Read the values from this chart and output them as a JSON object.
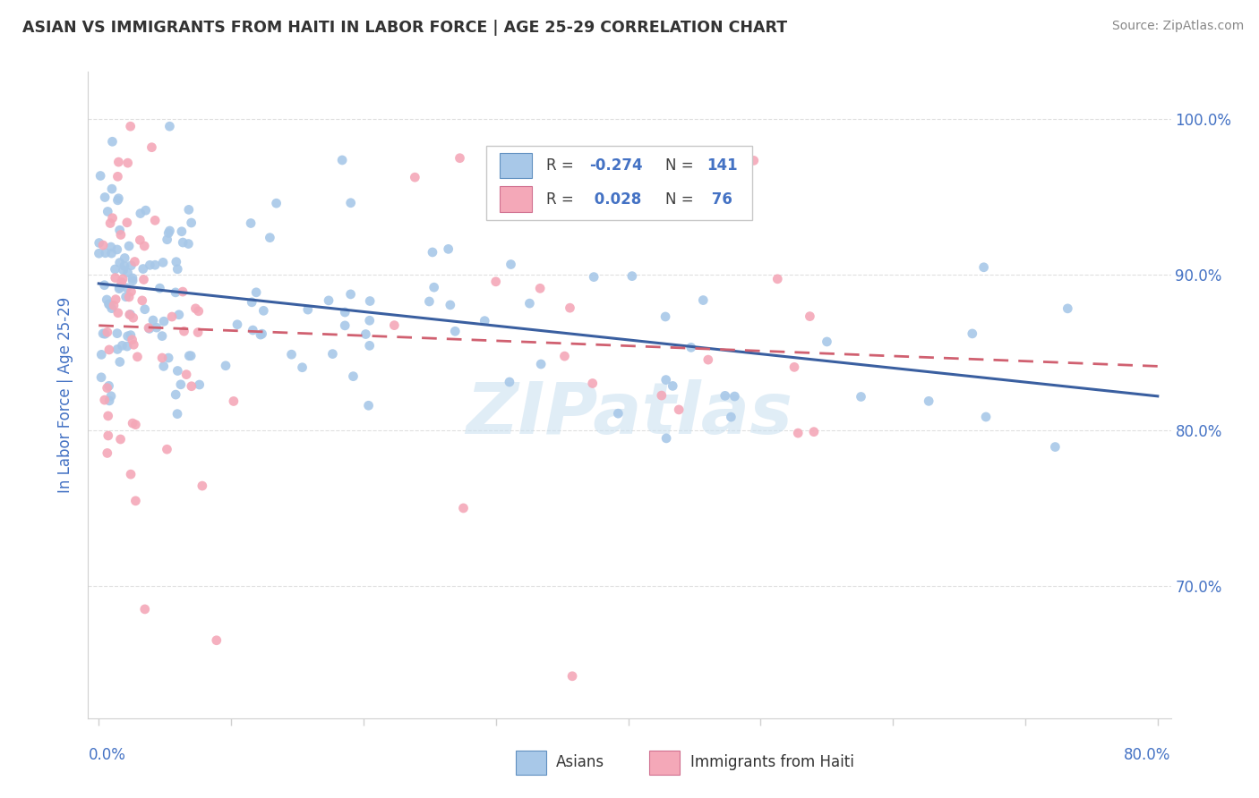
{
  "title": "ASIAN VS IMMIGRANTS FROM HAITI IN LABOR FORCE | AGE 25-29 CORRELATION CHART",
  "source": "Source: ZipAtlas.com",
  "ylabel": "In Labor Force | Age 25-29",
  "color_asian": "#a8c8e8",
  "color_haiti": "#f4a8b8",
  "line_color_asian": "#3a5fa0",
  "line_color_haiti": "#d06070",
  "background_color": "#ffffff",
  "watermark": "ZIPatlas",
  "grid_color": "#d8d8d8",
  "spine_color": "#d0d0d0",
  "tick_color": "#4472c4",
  "legend_text_color": "#404040",
  "legend_val_color": "#4472c4",
  "r1_val": "-0.274",
  "n1_val": "141",
  "r2_val": "0.028",
  "n2_val": "76"
}
